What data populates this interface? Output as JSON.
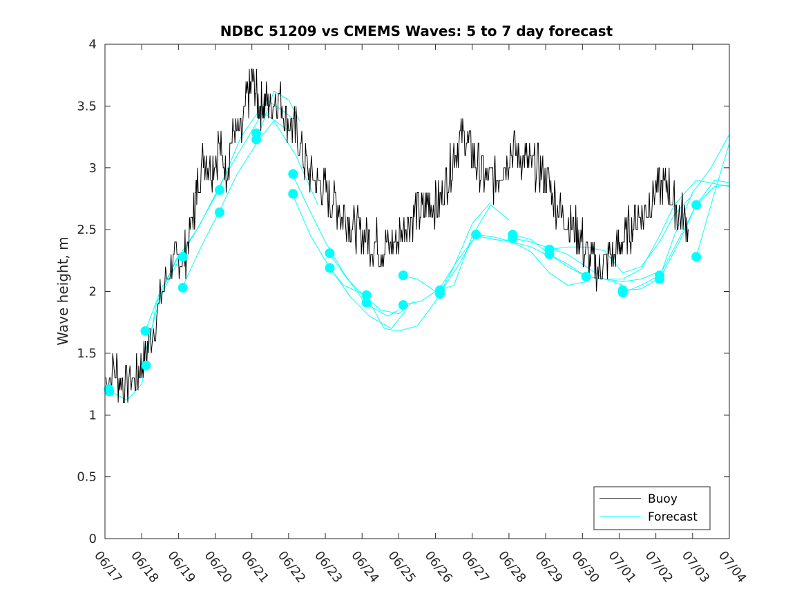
{
  "chart_data": {
    "type": "line",
    "title": "NDBC 51209 vs CMEMS Waves: 5 to 7 day forecast",
    "xlabel": "",
    "ylabel": "Wave height, m",
    "xlim": [
      "06/17",
      "07/04"
    ],
    "ylim": [
      0,
      4
    ],
    "x_ticks": [
      "06/17",
      "06/18",
      "06/19",
      "06/20",
      "06/21",
      "06/22",
      "06/23",
      "06/24",
      "06/25",
      "06/26",
      "06/27",
      "06/28",
      "06/29",
      "06/30",
      "07/01",
      "07/02",
      "07/03",
      "07/04"
    ],
    "y_ticks": [
      "0",
      "0.5",
      "1",
      "1.5",
      "2",
      "2.5",
      "3",
      "3.5",
      "4"
    ],
    "grid": false,
    "legend_position": "bottom-right",
    "colors": {
      "buoy": "#000000",
      "forecast": "#00ffff"
    },
    "series": [
      {
        "name": "Buoy",
        "x_unit": "days since 06/17",
        "points": [
          [
            0.0,
            1.3
          ],
          [
            0.3,
            1.35
          ],
          [
            0.5,
            1.25
          ],
          [
            0.8,
            1.28
          ],
          [
            1.0,
            1.4
          ],
          [
            1.2,
            1.6
          ],
          [
            1.5,
            1.9
          ],
          [
            1.8,
            2.2
          ],
          [
            2.0,
            2.25
          ],
          [
            2.2,
            2.3
          ],
          [
            2.4,
            2.6
          ],
          [
            2.5,
            2.85
          ],
          [
            2.7,
            3.1
          ],
          [
            2.9,
            3.0
          ],
          [
            3.1,
            3.15
          ],
          [
            3.3,
            3.0
          ],
          [
            3.5,
            3.3
          ],
          [
            3.7,
            3.25
          ],
          [
            3.9,
            3.6
          ],
          [
            4.05,
            3.7
          ],
          [
            4.2,
            3.5
          ],
          [
            4.35,
            3.55
          ],
          [
            4.5,
            3.5
          ],
          [
            4.7,
            3.6
          ],
          [
            4.9,
            3.45
          ],
          [
            5.1,
            3.35
          ],
          [
            5.3,
            3.2
          ],
          [
            5.5,
            3.0
          ],
          [
            5.7,
            2.9
          ],
          [
            5.9,
            2.85
          ],
          [
            6.1,
            2.75
          ],
          [
            6.3,
            2.7
          ],
          [
            6.5,
            2.6
          ],
          [
            6.7,
            2.55
          ],
          [
            6.9,
            2.5
          ],
          [
            7.1,
            2.45
          ],
          [
            7.3,
            2.4
          ],
          [
            7.5,
            2.35
          ],
          [
            7.7,
            2.35
          ],
          [
            7.9,
            2.4
          ],
          [
            8.1,
            2.5
          ],
          [
            8.3,
            2.6
          ],
          [
            8.5,
            2.65
          ],
          [
            8.7,
            2.7
          ],
          [
            8.9,
            2.7
          ],
          [
            9.1,
            2.75
          ],
          [
            9.3,
            2.9
          ],
          [
            9.5,
            3.1
          ],
          [
            9.7,
            3.25
          ],
          [
            9.9,
            3.2
          ],
          [
            10.1,
            3.05
          ],
          [
            10.3,
            2.95
          ],
          [
            10.5,
            2.9
          ],
          [
            10.7,
            2.95
          ],
          [
            10.9,
            3.05
          ],
          [
            11.1,
            3.15
          ],
          [
            11.3,
            3.1
          ],
          [
            11.5,
            3.05
          ],
          [
            11.7,
            3.0
          ],
          [
            11.9,
            2.95
          ],
          [
            12.1,
            2.85
          ],
          [
            12.3,
            2.7
          ],
          [
            12.5,
            2.6
          ],
          [
            12.7,
            2.55
          ],
          [
            12.9,
            2.45
          ],
          [
            13.1,
            2.3
          ],
          [
            13.3,
            2.2
          ],
          [
            13.5,
            2.2
          ],
          [
            13.7,
            2.25
          ],
          [
            13.9,
            2.3
          ],
          [
            14.1,
            2.4
          ],
          [
            14.3,
            2.5
          ],
          [
            14.5,
            2.6
          ],
          [
            14.7,
            2.65
          ],
          [
            14.9,
            2.75
          ],
          [
            15.1,
            2.85
          ],
          [
            15.3,
            2.9
          ],
          [
            15.5,
            2.7
          ],
          [
            15.7,
            2.6
          ],
          [
            15.9,
            2.5
          ]
        ]
      },
      {
        "name": "Forecast",
        "x_unit": "days since 06/17",
        "points": [
          [
            0.1,
            1.2
          ],
          [
            0.5,
            1.13
          ],
          [
            1.0,
            1.2
          ],
          [
            1.3,
            1.45
          ],
          [
            1.6,
            1.85
          ],
          [
            2.0,
            2.15
          ],
          [
            2.5,
            2.45
          ],
          [
            3.0,
            2.65
          ],
          [
            3.5,
            2.85
          ],
          [
            4.0,
            3.05
          ],
          [
            4.5,
            3.3
          ],
          [
            4.8,
            3.32
          ],
          [
            5.1,
            3.15
          ],
          [
            5.4,
            2.9
          ],
          [
            5.7,
            2.6
          ],
          [
            6.0,
            2.35
          ],
          [
            6.3,
            2.15
          ],
          [
            6.6,
            1.95
          ],
          [
            6.9,
            1.82
          ],
          [
            7.2,
            1.75
          ],
          [
            7.5,
            1.72
          ],
          [
            7.8,
            1.78
          ],
          [
            8.1,
            1.88
          ],
          [
            8.4,
            1.92
          ],
          [
            8.7,
            1.95
          ],
          [
            9.0,
            2.0
          ],
          [
            9.3,
            2.2
          ],
          [
            9.6,
            2.38
          ],
          [
            10.0,
            2.45
          ],
          [
            10.4,
            2.42
          ],
          [
            10.8,
            2.4
          ],
          [
            11.2,
            2.38
          ],
          [
            11.6,
            2.32
          ],
          [
            12.0,
            2.22
          ],
          [
            12.4,
            2.15
          ],
          [
            12.8,
            2.12
          ],
          [
            13.2,
            2.1
          ],
          [
            13.6,
            2.05
          ],
          [
            14.0,
            2.08
          ],
          [
            14.4,
            2.15
          ],
          [
            14.8,
            2.35
          ],
          [
            15.2,
            2.6
          ],
          [
            15.6,
            2.8
          ],
          [
            16.0,
            2.9
          ],
          [
            16.4,
            3.05
          ],
          [
            17.0,
            3.25
          ]
        ]
      }
    ],
    "forecast_segments": [
      [
        [
          0.1,
          1.2
        ],
        [
          0.6,
          1.12
        ],
        [
          1.0,
          1.25
        ],
        [
          1.4,
          1.9
        ],
        [
          2.0,
          2.3
        ]
      ],
      [
        [
          1.0,
          1.4
        ],
        [
          1.5,
          1.95
        ],
        [
          2.0,
          2.25
        ],
        [
          2.6,
          2.55
        ],
        [
          3.2,
          2.9
        ],
        [
          3.8,
          3.2
        ],
        [
          4.3,
          3.45
        ],
        [
          5.0,
          3.3
        ]
      ],
      [
        [
          1.1,
          1.68
        ],
        [
          1.5,
          2.0
        ],
        [
          2.0,
          2.28
        ],
        [
          2.5,
          2.5
        ],
        [
          3.1,
          2.82
        ],
        [
          3.7,
          3.25
        ],
        [
          4.4,
          3.55
        ],
        [
          4.9,
          3.45
        ],
        [
          5.1,
          3.4
        ]
      ],
      [
        [
          2.1,
          2.03
        ],
        [
          2.6,
          2.35
        ],
        [
          3.1,
          2.64
        ],
        [
          3.6,
          2.95
        ],
        [
          4.2,
          3.23
        ],
        [
          4.6,
          3.38
        ],
        [
          5.2,
          3.1
        ],
        [
          5.8,
          2.7
        ]
      ],
      [
        [
          4.2,
          3.28
        ],
        [
          4.6,
          3.62
        ],
        [
          5.0,
          3.55
        ],
        [
          5.3,
          3.38
        ]
      ],
      [
        [
          5.1,
          2.95
        ],
        [
          5.5,
          2.7
        ],
        [
          6.0,
          2.4
        ],
        [
          6.5,
          2.15
        ],
        [
          7.1,
          1.9
        ],
        [
          7.7,
          1.8
        ],
        [
          8.0,
          1.85
        ]
      ],
      [
        [
          5.1,
          2.79
        ],
        [
          5.6,
          2.45
        ],
        [
          6.1,
          2.2
        ],
        [
          6.7,
          1.95
        ],
        [
          7.2,
          1.8
        ],
        [
          7.8,
          1.7
        ],
        [
          8.2,
          1.85
        ]
      ],
      [
        [
          6.1,
          2.31
        ],
        [
          6.6,
          2.1
        ],
        [
          7.0,
          1.98
        ],
        [
          7.5,
          1.85
        ],
        [
          8.0,
          1.82
        ],
        [
          8.4,
          1.92
        ]
      ],
      [
        [
          6.1,
          2.19
        ],
        [
          6.5,
          2.05
        ],
        [
          7.1,
          1.97
        ],
        [
          7.6,
          1.7
        ],
        [
          8.0,
          1.68
        ],
        [
          8.5,
          1.72
        ],
        [
          9.0,
          1.92
        ],
        [
          9.5,
          2.2
        ],
        [
          10.0,
          2.55
        ],
        [
          10.5,
          2.72
        ]
      ],
      [
        [
          8.1,
          2.13
        ],
        [
          8.5,
          2.1
        ],
        [
          9.0,
          2.0
        ],
        [
          9.5,
          2.05
        ],
        [
          10.0,
          2.45
        ],
        [
          10.5,
          2.7
        ],
        [
          11.0,
          2.58
        ]
      ],
      [
        [
          8.1,
          1.89
        ],
        [
          8.6,
          1.92
        ],
        [
          9.1,
          2.02
        ],
        [
          9.6,
          2.25
        ],
        [
          10.1,
          2.45
        ],
        [
          10.6,
          2.42
        ],
        [
          11.1,
          2.4
        ],
        [
          11.6,
          2.36
        ],
        [
          12.0,
          2.3
        ]
      ],
      [
        [
          9.1,
          1.98
        ],
        [
          9.6,
          2.2
        ],
        [
          10.1,
          2.46
        ],
        [
          10.6,
          2.44
        ],
        [
          11.1,
          2.4
        ],
        [
          11.6,
          2.32
        ],
        [
          12.1,
          2.15
        ],
        [
          12.6,
          2.05
        ],
        [
          13.1,
          2.08
        ]
      ],
      [
        [
          11.1,
          2.43
        ],
        [
          11.6,
          2.4
        ],
        [
          12.1,
          2.35
        ],
        [
          12.6,
          2.3
        ],
        [
          13.1,
          2.2
        ],
        [
          13.6,
          2.1
        ],
        [
          14.1,
          2.05
        ]
      ],
      [
        [
          11.1,
          2.46
        ],
        [
          11.6,
          2.42
        ],
        [
          12.1,
          2.3
        ],
        [
          12.6,
          2.2
        ],
        [
          13.1,
          2.12
        ],
        [
          13.6,
          2.1
        ],
        [
          14.1,
          2.08
        ],
        [
          14.6,
          2.1
        ],
        [
          15.0,
          2.15
        ]
      ],
      [
        [
          12.1,
          2.34
        ],
        [
          12.6,
          2.36
        ],
        [
          13.1,
          2.36
        ],
        [
          13.6,
          2.33
        ],
        [
          14.1,
          2.15
        ],
        [
          14.6,
          2.2
        ],
        [
          15.1,
          2.4
        ],
        [
          15.5,
          2.62
        ],
        [
          16.0,
          2.78
        ]
      ],
      [
        [
          12.1,
          2.3
        ],
        [
          12.6,
          2.22
        ],
        [
          13.1,
          2.12
        ],
        [
          13.6,
          2.1
        ],
        [
          14.1,
          2.1
        ],
        [
          14.6,
          2.18
        ],
        [
          15.1,
          2.45
        ],
        [
          15.5,
          2.7
        ],
        [
          16.1,
          2.9
        ],
        [
          17.0,
          2.85
        ]
      ],
      [
        [
          14.1,
          2.01
        ],
        [
          14.6,
          2.02
        ],
        [
          15.1,
          2.11
        ],
        [
          15.5,
          2.45
        ],
        [
          16.0,
          2.8
        ],
        [
          16.5,
          3.0
        ],
        [
          17.0,
          3.27
        ]
      ],
      [
        [
          14.1,
          1.99
        ],
        [
          14.6,
          2.05
        ],
        [
          15.1,
          2.13
        ],
        [
          15.5,
          2.35
        ],
        [
          16.1,
          2.7
        ],
        [
          16.6,
          2.9
        ],
        [
          17.0,
          2.88
        ]
      ],
      [
        [
          15.1,
          2.1
        ],
        [
          15.6,
          2.38
        ],
        [
          16.1,
          2.7
        ],
        [
          16.6,
          2.85
        ],
        [
          17.0,
          2.86
        ]
      ],
      [
        [
          16.1,
          2.28
        ],
        [
          16.5,
          2.7
        ],
        [
          17.0,
          3.2
        ]
      ]
    ],
    "forecast_markers": [
      [
        0.1,
        1.21
      ],
      [
        0.12,
        1.19
      ],
      [
        1.1,
        1.68
      ],
      [
        1.12,
        1.4
      ],
      [
        2.12,
        2.28
      ],
      [
        2.12,
        2.03
      ],
      [
        3.12,
        2.82
      ],
      [
        3.12,
        2.64
      ],
      [
        4.12,
        3.28
      ],
      [
        4.12,
        3.23
      ],
      [
        5.12,
        2.95
      ],
      [
        5.12,
        2.79
      ],
      [
        6.12,
        2.31
      ],
      [
        6.12,
        2.19
      ],
      [
        7.12,
        1.97
      ],
      [
        7.12,
        1.91
      ],
      [
        8.12,
        2.13
      ],
      [
        8.12,
        1.89
      ],
      [
        9.12,
        2.01
      ],
      [
        9.12,
        1.98
      ],
      [
        10.1,
        2.46
      ],
      [
        11.1,
        2.46
      ],
      [
        11.1,
        2.43
      ],
      [
        12.1,
        2.34
      ],
      [
        12.1,
        2.3
      ],
      [
        13.1,
        2.12
      ],
      [
        14.1,
        2.01
      ],
      [
        14.1,
        1.99
      ],
      [
        15.1,
        2.13
      ],
      [
        15.1,
        2.1
      ],
      [
        16.1,
        2.7
      ],
      [
        16.1,
        2.28
      ]
    ]
  },
  "legend": {
    "entries": [
      {
        "label": "Buoy",
        "color": "#000000"
      },
      {
        "label": "Forecast",
        "color": "#00ffff"
      }
    ]
  }
}
